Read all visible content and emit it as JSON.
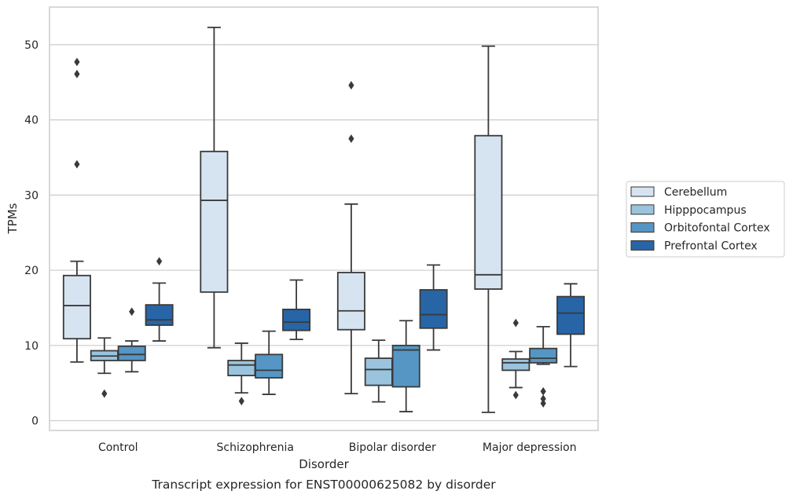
{
  "chart_data": {
    "type": "box",
    "caption": "Transcript expression for ENST00000625082 by disorder",
    "xlabel": "Disorder",
    "ylabel": "TPMs",
    "ylim": [
      -1.3,
      55
    ],
    "yticks": [
      0,
      10,
      20,
      30,
      40,
      50
    ],
    "grid": "horizontal",
    "legend_position": "right",
    "categories": [
      "Control",
      "Schizophrenia",
      "Bipolar disorder",
      "Major depression"
    ],
    "series": [
      {
        "name": "Cerebellum",
        "color": "#d6e4f1",
        "boxes": [
          {
            "whisker_low": 7.8,
            "q1": 10.9,
            "median": 15.3,
            "q3": 19.3,
            "whisker_high": 21.2,
            "outliers": [
              34.1,
              46.1,
              47.7
            ]
          },
          {
            "whisker_low": 9.7,
            "q1": 17.1,
            "median": 29.3,
            "q3": 35.8,
            "whisker_high": 52.3,
            "outliers": []
          },
          {
            "whisker_low": 3.6,
            "q1": 12.1,
            "median": 14.6,
            "q3": 19.7,
            "whisker_high": 28.8,
            "outliers": [
              37.5,
              44.6
            ]
          },
          {
            "whisker_low": 1.1,
            "q1": 17.5,
            "median": 19.4,
            "q3": 37.9,
            "whisker_high": 49.8,
            "outliers": []
          }
        ]
      },
      {
        "name": "Hipppocampus",
        "color": "#9ac4de",
        "boxes": [
          {
            "whisker_low": 6.3,
            "q1": 8.0,
            "median": 8.6,
            "q3": 9.3,
            "whisker_high": 11.0,
            "outliers": [
              3.6
            ]
          },
          {
            "whisker_low": 3.7,
            "q1": 6.0,
            "median": 7.4,
            "q3": 8.0,
            "whisker_high": 10.3,
            "outliers": [
              2.6
            ]
          },
          {
            "whisker_low": 2.5,
            "q1": 4.7,
            "median": 6.8,
            "q3": 8.3,
            "whisker_high": 10.7,
            "outliers": []
          },
          {
            "whisker_low": 4.4,
            "q1": 6.7,
            "median": 7.7,
            "q3": 8.2,
            "whisker_high": 9.2,
            "outliers": [
              3.4,
              13.0
            ]
          }
        ]
      },
      {
        "name": "Orbitofontal Cortex",
        "color": "#5596c4",
        "boxes": [
          {
            "whisker_low": 6.5,
            "q1": 8.0,
            "median": 8.8,
            "q3": 9.9,
            "whisker_high": 10.6,
            "outliers": [
              14.5
            ]
          },
          {
            "whisker_low": 3.5,
            "q1": 5.7,
            "median": 6.7,
            "q3": 8.8,
            "whisker_high": 11.9,
            "outliers": []
          },
          {
            "whisker_low": 1.2,
            "q1": 4.5,
            "median": 9.4,
            "q3": 10.0,
            "whisker_high": 13.3,
            "outliers": []
          },
          {
            "whisker_low": 7.5,
            "q1": 7.7,
            "median": 8.3,
            "q3": 9.6,
            "whisker_high": 12.5,
            "outliers": [
              2.3,
              2.9,
              3.9
            ]
          }
        ]
      },
      {
        "name": "Prefrontal Cortex",
        "color": "#2765a7",
        "boxes": [
          {
            "whisker_low": 10.6,
            "q1": 12.7,
            "median": 13.4,
            "q3": 15.4,
            "whisker_high": 18.3,
            "outliers": [
              21.2
            ]
          },
          {
            "whisker_low": 10.8,
            "q1": 12.0,
            "median": 13.1,
            "q3": 14.8,
            "whisker_high": 18.7,
            "outliers": []
          },
          {
            "whisker_low": 9.4,
            "q1": 12.3,
            "median": 14.1,
            "q3": 17.4,
            "whisker_high": 20.7,
            "outliers": []
          },
          {
            "whisker_low": 7.2,
            "q1": 11.5,
            "median": 14.3,
            "q3": 16.5,
            "whisker_high": 18.2,
            "outliers": []
          }
        ]
      }
    ]
  }
}
